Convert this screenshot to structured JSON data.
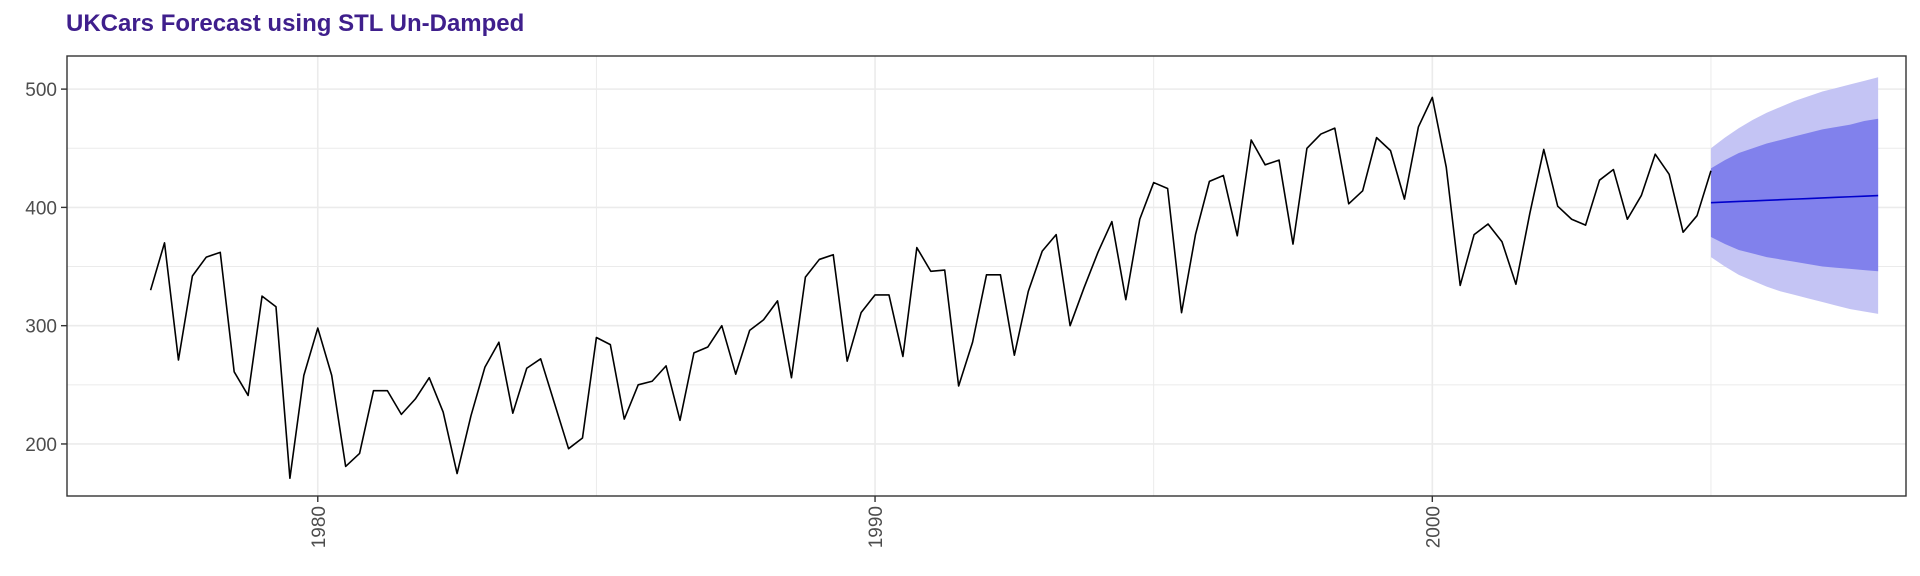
{
  "chart_data": {
    "type": "line",
    "title": "UKCars Forecast using STL Un-Damped",
    "xlabel": "",
    "ylabel": "",
    "xlim": [
      1975.5,
      2008.5
    ],
    "ylim": [
      156,
      528
    ],
    "x_ticks": [
      1980,
      1990,
      2000
    ],
    "y_ticks": [
      200,
      300,
      400,
      500
    ],
    "grid": true,
    "colors": {
      "title": "#3f1f8c",
      "history_line": "#000000",
      "forecast_line": "#0000cc",
      "band_95": "#c4c4f4",
      "band_80": "#8181ec",
      "grid": "#ebebeb",
      "panel_border": "#333333"
    },
    "history": {
      "start": 1977.0,
      "frequency": 4,
      "values": [
        330,
        370,
        271,
        342,
        358,
        362,
        261,
        241,
        325,
        316,
        171,
        258,
        298,
        258,
        181,
        192,
        245,
        245,
        225,
        238,
        256,
        227,
        175,
        224,
        265,
        286,
        226,
        264,
        272,
        234,
        196,
        205,
        290,
        284,
        221,
        250,
        253,
        266,
        220,
        277,
        282,
        300,
        259,
        296,
        305,
        321,
        256,
        341,
        356,
        360,
        270,
        311,
        326,
        326,
        274,
        366,
        346,
        347,
        249,
        286,
        343,
        343,
        275,
        329,
        363,
        377,
        300,
        332,
        362,
        388,
        322,
        390,
        421,
        416,
        311,
        377,
        422,
        427,
        376,
        457,
        436,
        440,
        369,
        450,
        462,
        467,
        403,
        414,
        459,
        448,
        407,
        468,
        493,
        434,
        334,
        377,
        386,
        371,
        335,
        395,
        449,
        401,
        390,
        385,
        423,
        432,
        390,
        410,
        445,
        428,
        379,
        393,
        431
      ]
    },
    "forecast": {
      "start": 2005.0,
      "frequency": 4,
      "mean": [
        404,
        404.5,
        405,
        405.5,
        406,
        406.5,
        407,
        407.5,
        408,
        408.5,
        409,
        409.5,
        410
      ],
      "lo80": [
        375,
        369,
        364,
        361,
        358,
        356,
        354,
        352,
        350,
        349,
        348,
        347,
        346
      ],
      "hi80": [
        433,
        440,
        446,
        450,
        454,
        457,
        460,
        463,
        466,
        468,
        470,
        473,
        475
      ],
      "lo95": [
        358,
        350,
        343,
        338,
        333,
        329,
        326,
        323,
        320,
        317,
        314,
        312,
        310
      ],
      "hi95": [
        450,
        459,
        467,
        474,
        480,
        485,
        490,
        494,
        498,
        501,
        504,
        507,
        510
      ]
    }
  }
}
